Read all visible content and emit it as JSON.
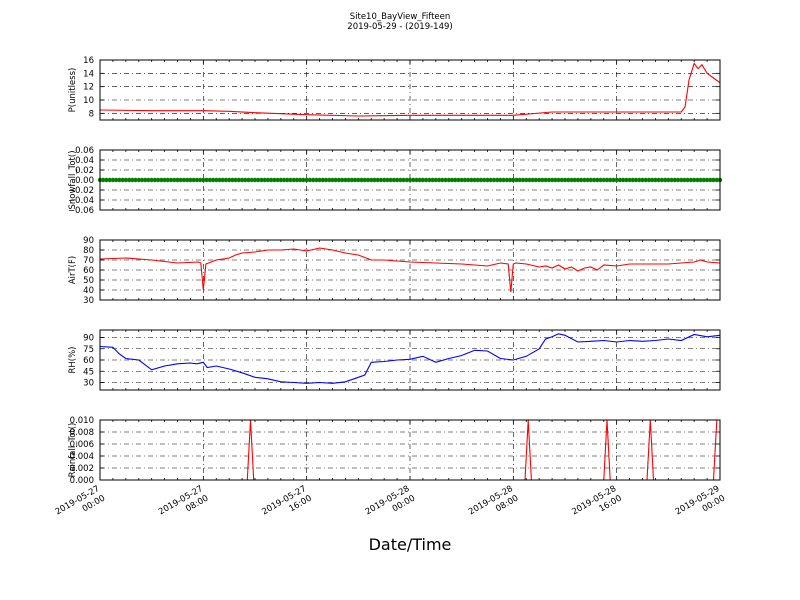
{
  "figure": {
    "title_line1": "Site10_BayView_Fifteen",
    "title_line2": "2019-05-29 - (2019-149)",
    "xlabel": "Date/Time"
  },
  "chart_data": [
    {
      "type": "line",
      "ylabel": "P(unitless)",
      "color": "#ff0000",
      "xlim": [
        0,
        48
      ],
      "ylim": [
        7,
        16
      ],
      "yticks": [
        8,
        10,
        12,
        14,
        16
      ],
      "ytick_labels": [
        "8",
        "10",
        "12",
        "14",
        "16"
      ],
      "grid": true,
      "x": [
        0,
        4,
        8,
        10,
        12,
        16,
        20,
        24,
        28,
        32,
        35,
        36,
        45,
        45.3,
        45.6,
        46,
        46.3,
        46.6,
        47,
        47.5,
        48
      ],
      "values": [
        8.5,
        8.4,
        8.4,
        8.3,
        8.1,
        7.8,
        7.6,
        7.7,
        7.7,
        7.7,
        8.2,
        8.2,
        8.2,
        9.0,
        13.0,
        15.5,
        14.7,
        15.3,
        14.0,
        13.3,
        12.6
      ]
    },
    {
      "type": "line",
      "ylabel": "Snowfall_Tot()",
      "color": "#008000",
      "xlim": [
        0,
        48
      ],
      "ylim": [
        -0.06,
        0.06
      ],
      "yticks": [
        -0.06,
        -0.04,
        -0.02,
        0.0,
        0.02,
        0.04,
        0.06
      ],
      "ytick_labels": [
        "−0.06",
        "−0.04",
        "−0.02",
        "0.00",
        "0.02",
        "0.04",
        "0.06"
      ],
      "grid": true,
      "markers": true,
      "x": [
        0,
        48
      ],
      "values": [
        0,
        0
      ]
    },
    {
      "type": "line",
      "ylabel": "AirT(F)",
      "color": "#ff0000",
      "xlim": [
        0,
        48
      ],
      "ylim": [
        30,
        90
      ],
      "yticks": [
        30,
        40,
        50,
        60,
        70,
        80,
        90
      ],
      "ytick_labels": [
        "30",
        "40",
        "50",
        "60",
        "70",
        "80",
        "90"
      ],
      "grid": true,
      "x": [
        0,
        2,
        4,
        6,
        7.6,
        7.8,
        8.0,
        8.2,
        9,
        10,
        10.5,
        11,
        12,
        13,
        14,
        15,
        16,
        17,
        17.5,
        18,
        19,
        20,
        21,
        22,
        24,
        26,
        28,
        30,
        31,
        31.6,
        31.8,
        32.0,
        32.2,
        33,
        34,
        34.5,
        35,
        35.5,
        36,
        36.5,
        37,
        37.5,
        38,
        38.5,
        39,
        40,
        41,
        42,
        44,
        46,
        46.5,
        47,
        48
      ],
      "values": [
        71,
        72,
        70,
        67,
        68,
        67,
        40,
        66,
        70,
        72,
        75,
        77,
        78,
        80,
        80,
        81,
        79,
        82,
        81,
        80,
        77,
        75,
        70,
        70,
        68,
        67,
        66,
        64,
        67,
        66,
        38,
        66,
        67,
        66,
        63,
        64,
        62,
        65,
        61,
        63,
        59,
        62,
        63,
        60,
        65,
        64,
        66,
        66,
        66,
        68,
        70,
        68,
        67
      ]
    },
    {
      "type": "line",
      "ylabel": "RH(%)",
      "color": "#0000ff",
      "xlim": [
        0,
        48
      ],
      "ylim": [
        20,
        100
      ],
      "yticks": [
        30,
        45,
        60,
        75,
        90
      ],
      "ytick_labels": [
        "30",
        "45",
        "60",
        "75",
        "90"
      ],
      "grid": true,
      "x": [
        0,
        1,
        1.5,
        2,
        3,
        4,
        5,
        6,
        7,
        7.5,
        8,
        8.3,
        9,
        10,
        11,
        12,
        13,
        14,
        15,
        16,
        17,
        18,
        19,
        20,
        20.5,
        21,
        22,
        23,
        24,
        25,
        26,
        27,
        28,
        29,
        30,
        31,
        32,
        33,
        34,
        34.5,
        35,
        35.5,
        36,
        37,
        38,
        39,
        40,
        41,
        42,
        43,
        44,
        45,
        46,
        47,
        48
      ],
      "values": [
        78,
        77,
        68,
        62,
        60,
        47,
        52,
        55,
        56,
        55,
        57,
        50,
        52,
        48,
        43,
        37,
        35,
        31,
        30,
        29,
        30,
        29,
        31,
        37,
        40,
        57,
        58,
        60,
        61,
        65,
        57,
        62,
        66,
        73,
        72,
        62,
        60,
        65,
        75,
        88,
        91,
        95,
        93,
        84,
        85,
        86,
        84,
        86,
        85,
        86,
        88,
        86,
        94,
        91,
        93
      ]
    },
    {
      "type": "line",
      "ylabel": "Rainfall_Tot()",
      "color": "#ff0000",
      "xlim": [
        0,
        48
      ],
      "ylim": [
        0,
        0.01
      ],
      "yticks": [
        0,
        0.002,
        0.004,
        0.006,
        0.008,
        0.01
      ],
      "ytick_labels": [
        "0.000",
        "0.002",
        "0.004",
        "0.006",
        "0.008",
        "0.010"
      ],
      "grid": true,
      "x": [
        0,
        11.4,
        11.65,
        11.9,
        32.9,
        33.15,
        33.4,
        39.0,
        39.25,
        39.5,
        42.35,
        42.6,
        42.85,
        47.5,
        47.75,
        48
      ],
      "values": [
        0,
        0,
        0.01,
        0,
        0,
        0.01,
        0,
        0,
        0.01,
        0,
        0,
        0.01,
        0,
        0,
        0.01,
        0.01
      ]
    }
  ],
  "x_axis": {
    "xlim": [
      0,
      48
    ],
    "ticks": [
      0,
      8,
      16,
      24,
      32,
      40,
      48
    ],
    "tick_labels": [
      [
        "2019-05-27",
        "00:00"
      ],
      [
        "2019-05-27",
        "08:00"
      ],
      [
        "2019-05-27",
        "16:00"
      ],
      [
        "2019-05-28",
        "00:00"
      ],
      [
        "2019-05-28",
        "08:00"
      ],
      [
        "2019-05-28",
        "16:00"
      ],
      [
        "2019-05-29",
        "00:00"
      ]
    ]
  }
}
